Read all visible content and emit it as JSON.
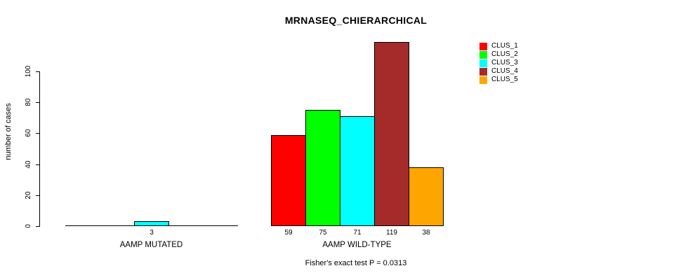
{
  "chart_data": {
    "type": "bar",
    "title": "MRNASEQ_CHIERARCHICAL",
    "subtitle": "Fisher's exact test P = 0.0313",
    "ylabel": "number of cases",
    "xlabel": "",
    "ylim": [
      0,
      100
    ],
    "yticks": [
      0,
      20,
      40,
      60,
      80,
      100
    ],
    "grid": false,
    "legend_position": "top-right",
    "categories": [
      "AAMP MUTATED",
      "AAMP WILD-TYPE"
    ],
    "series": [
      {
        "name": "CLUS_1",
        "color": "#FF0000",
        "values": [
          0,
          59
        ]
      },
      {
        "name": "CLUS_2",
        "color": "#00FF00",
        "values": [
          0,
          75
        ]
      },
      {
        "name": "CLUS_3",
        "color": "#00FFFF",
        "values": [
          3,
          71
        ]
      },
      {
        "name": "CLUS_4",
        "color": "#A52A2A",
        "values": [
          0,
          119
        ]
      },
      {
        "name": "CLUS_5",
        "color": "#FFA500",
        "values": [
          0,
          38
        ]
      }
    ],
    "bar_value_labels": {
      "AAMP MUTATED": [
        null,
        null,
        3,
        null,
        null
      ],
      "AAMP WILD-TYPE": [
        59,
        75,
        71,
        119,
        38
      ]
    },
    "notes": "zero-height bars drawn as flat baseline segments; only non-zero bars labeled"
  }
}
